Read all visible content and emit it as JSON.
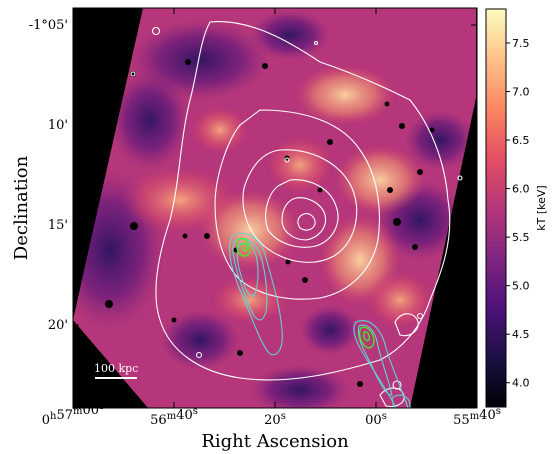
{
  "chart_data": {
    "type": "heatmap",
    "title": "",
    "xlabel": "Right Ascension",
    "ylabel": "Declination",
    "x_ticks": [
      {
        "value": "00:57:00",
        "label_parts": [
          "0",
          "h",
          "57",
          "m",
          "00",
          "s"
        ]
      },
      {
        "value": "00:56:40",
        "label_parts": [
          "",
          "",
          "56",
          "m",
          "40",
          "s"
        ]
      },
      {
        "value": "00:56:20",
        "label_parts": [
          "",
          "",
          "",
          "",
          "20",
          "s"
        ]
      },
      {
        "value": "00:56:00",
        "label_parts": [
          "",
          "",
          "",
          "",
          "00",
          "s"
        ]
      },
      {
        "value": "00:55:40",
        "label_parts": [
          "",
          "",
          "55",
          "m",
          "40",
          "s"
        ]
      }
    ],
    "y_ticks": [
      "-1°05'",
      "10'",
      "15'",
      "20'"
    ],
    "colorbar": {
      "label": "kT [keV]",
      "ticks": [
        4.0,
        4.5,
        5.0,
        5.5,
        6.0,
        6.5,
        7.0,
        7.5
      ],
      "ticklabels": [
        "4.0",
        "4.5",
        "5.0",
        "5.5",
        "6.0",
        "6.5",
        "7.0",
        "7.5"
      ],
      "range": [
        3.75,
        7.85
      ],
      "colormap": [
        "#000004",
        "#1c1044",
        "#4f127b",
        "#812581",
        "#b5367a",
        "#e55064",
        "#fb8761",
        "#fec287",
        "#fcfdbf"
      ]
    },
    "scale_bar": {
      "label": "100 kpc"
    },
    "contour_colors": {
      "xray": "#ffffff",
      "radio": "#5fd3d6",
      "radio_core": "#44ee22"
    },
    "background_color": "#000000",
    "masked_color": "#000000"
  }
}
